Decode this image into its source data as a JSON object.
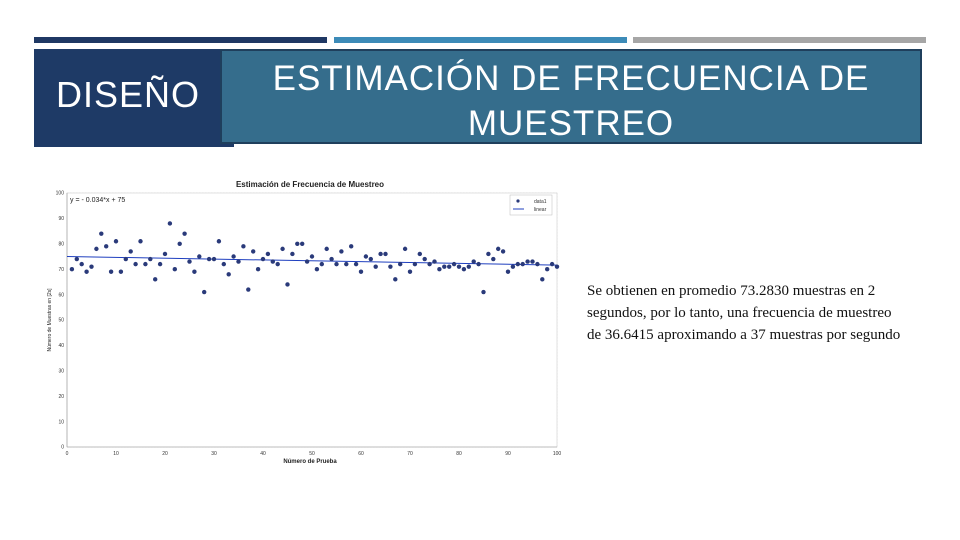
{
  "slide": {
    "section_label": "DISEÑO",
    "title": "ESTIMACIÓN DE FRECUENCIA DE MUESTREO",
    "paragraph": "Se obtienen en promedio 73.2830 muestras en 2 segundos, por lo tanto, una frecuencia de muestreo de 36.6415 aproximando a 37 muestras por segundo"
  },
  "colors": {
    "bar_navy": "#1f3864",
    "bar_blue": "#3c8bb8",
    "bar_gray": "#a6a6a6",
    "title_bg": "#356d8c",
    "section_bg": "#1e3a66",
    "data_point": "#2a3a7a",
    "trend_line": "#1f3fbf"
  },
  "chart_data": {
    "type": "scatter",
    "title": "Estimación de Frecuencia de Muestreo",
    "xlabel": "Número de Prueba",
    "ylabel": "Número de Muestras en [2s]",
    "equation": "y = - 0.034*x + 75",
    "xlim": [
      0,
      100
    ],
    "ylim": [
      0,
      100
    ],
    "xticks": [
      "0",
      "10",
      "20",
      "30",
      "40",
      "50",
      "60",
      "70",
      "80",
      "90",
      "100"
    ],
    "yticks": [
      "0",
      "10",
      "20",
      "30",
      "40",
      "50",
      "60",
      "70",
      "80",
      "90",
      "100"
    ],
    "grid": true,
    "legend_position": "top-right",
    "series": [
      {
        "name": "data1",
        "kind": "points",
        "x": [
          1,
          2,
          3,
          4,
          5,
          6,
          7,
          8,
          9,
          10,
          11,
          12,
          13,
          14,
          15,
          16,
          17,
          18,
          19,
          20,
          21,
          22,
          23,
          24,
          25,
          26,
          27,
          28,
          29,
          30,
          31,
          32,
          33,
          34,
          35,
          36,
          37,
          38,
          39,
          40,
          41,
          42,
          43,
          44,
          45,
          46,
          47,
          48,
          49,
          50,
          51,
          52,
          53,
          54,
          55,
          56,
          57,
          58,
          59,
          60,
          61,
          62,
          63,
          64,
          65,
          66,
          67,
          68,
          69,
          70,
          71,
          72,
          73,
          74,
          75,
          76,
          77,
          78,
          79,
          80,
          81,
          82,
          83,
          84,
          85,
          86,
          87,
          88,
          89,
          90,
          91,
          92,
          93,
          94,
          95,
          96,
          97,
          98,
          99,
          100
        ],
        "y": [
          70,
          74,
          72,
          69,
          71,
          78,
          84,
          79,
          69,
          81,
          69,
          74,
          77,
          72,
          81,
          72,
          74,
          66,
          72,
          76,
          88,
          70,
          80,
          84,
          73,
          69,
          75,
          61,
          74,
          74,
          81,
          72,
          68,
          75,
          73,
          79,
          62,
          77,
          70,
          74,
          76,
          73,
          72,
          78,
          64,
          76,
          80,
          80,
          73,
          75,
          70,
          72,
          78,
          74,
          72,
          77,
          72,
          79,
          72,
          69,
          75,
          74,
          71,
          76,
          76,
          71,
          66,
          72,
          78,
          69,
          72,
          76,
          74,
          72,
          73,
          70,
          71,
          71,
          72,
          71,
          70,
          71,
          73,
          72,
          61,
          76,
          74,
          78,
          77,
          69,
          71,
          72,
          72,
          73,
          73,
          72,
          66,
          70,
          72,
          71
        ]
      },
      {
        "name": "linear",
        "kind": "line",
        "x": [
          0,
          100
        ],
        "y": [
          75,
          71.6
        ]
      }
    ]
  }
}
